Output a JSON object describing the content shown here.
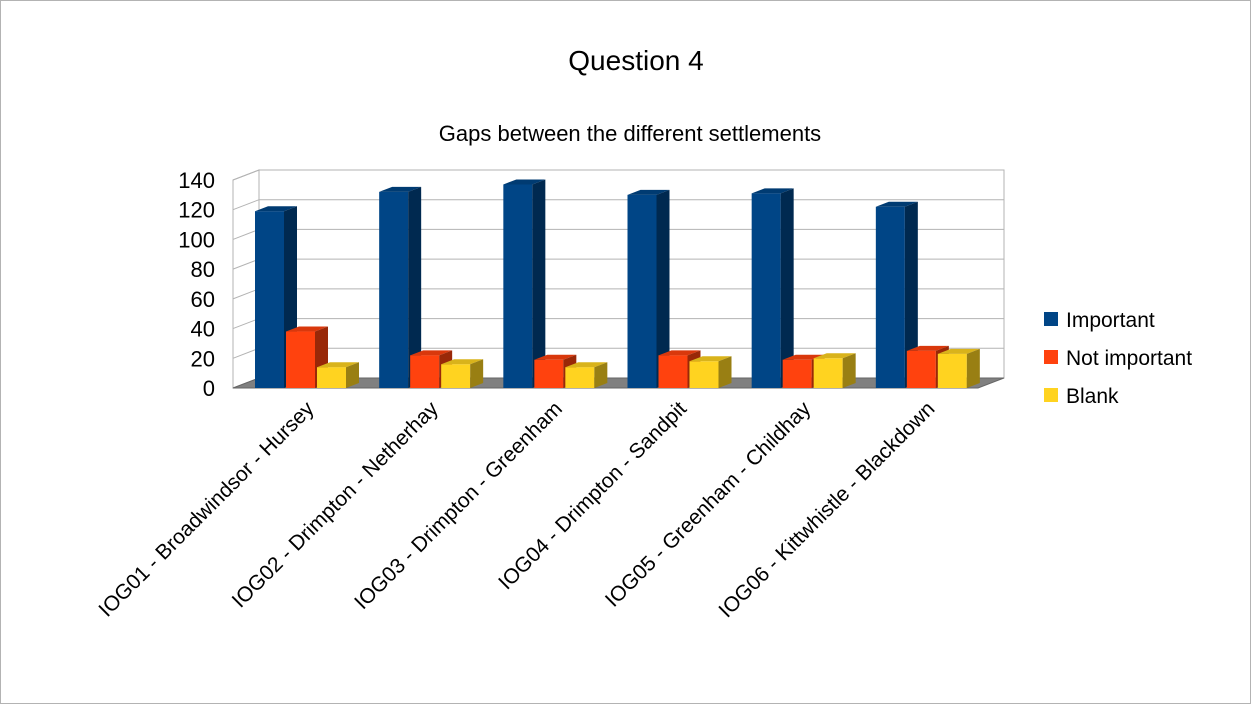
{
  "chart_data": {
    "type": "bar",
    "title": "Question 4",
    "subtitle": "Gaps between the different settlements",
    "categories": [
      "IOG01 - Broadwindsor - Hursey",
      "IOG02 - Drimpton - Netherhay",
      "IOG03 - Drimpton - Greenham",
      "IOG04 - Drimpton - Sandpit",
      "IOG05 - Greenham - Childhay",
      "IOG06 - Kittwhistle - Blackdown"
    ],
    "series": [
      {
        "name": "Important",
        "color": "#004586",
        "values": [
          119,
          132,
          137,
          130,
          131,
          122
        ]
      },
      {
        "name": "Not important",
        "color": "#ff420e",
        "values": [
          38,
          22,
          19,
          22,
          19,
          25
        ]
      },
      {
        "name": "Blank",
        "color": "#ffd320",
        "values": [
          14,
          16,
          14,
          18,
          20,
          23
        ]
      }
    ],
    "ylim": [
      0,
      140
    ],
    "yticks": [
      "0",
      "20",
      "40",
      "60",
      "80",
      "100",
      "120",
      "140"
    ],
    "grid": true,
    "legend": "right",
    "style": "3d"
  }
}
